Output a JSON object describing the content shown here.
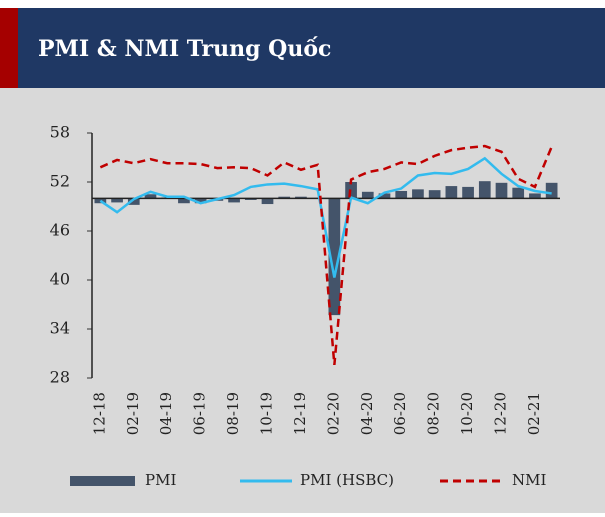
{
  "chart_data": {
    "type": "bar_line",
    "title": "PMI & NMI Trung Quốc",
    "categories": [
      "12-18",
      null,
      "02-19",
      null,
      "04-19",
      null,
      "06-19",
      null,
      "08-19",
      null,
      "10-19",
      null,
      "12-19",
      null,
      "02-20",
      null,
      "04-20",
      null,
      "06-20",
      null,
      "08-20",
      null,
      "10-20",
      null,
      "12-20",
      null,
      "02-21",
      null
    ],
    "series": [
      {
        "name": "PMI",
        "type": "bar",
        "color": "#44546a",
        "values": [
          49.4,
          49.5,
          49.2,
          50.5,
          50.1,
          49.4,
          49.4,
          49.7,
          49.5,
          49.8,
          49.3,
          50.2,
          50.2,
          50.0,
          35.7,
          52.0,
          50.8,
          50.6,
          50.9,
          51.1,
          51.0,
          51.5,
          51.4,
          52.1,
          51.9,
          51.3,
          50.6,
          51.9
        ]
      },
      {
        "name": "PMI (HSBC)",
        "type": "line",
        "color": "#33bbee",
        "values": [
          49.7,
          48.3,
          49.9,
          50.8,
          50.2,
          50.2,
          49.4,
          49.9,
          50.4,
          51.4,
          51.7,
          51.8,
          51.5,
          51.1,
          40.3,
          50.1,
          49.4,
          50.7,
          51.2,
          52.8,
          53.1,
          53.0,
          53.6,
          54.9,
          53.0,
          51.5,
          50.9,
          50.6
        ]
      },
      {
        "name": "NMI",
        "type": "dashed-line",
        "color": "#c00000",
        "values": [
          53.8,
          54.7,
          54.3,
          54.8,
          54.3,
          54.3,
          54.2,
          53.7,
          53.8,
          53.7,
          52.8,
          54.4,
          53.5,
          54.1,
          29.6,
          52.3,
          53.2,
          53.6,
          54.4,
          54.2,
          55.2,
          55.9,
          56.2,
          56.4,
          55.7,
          52.4,
          51.4,
          56.3
        ]
      }
    ],
    "bar_baseline": 50,
    "ylim": [
      28,
      58
    ],
    "yticks": [
      28,
      34,
      40,
      46,
      52,
      58
    ],
    "grid": false,
    "legend": "bottom"
  }
}
